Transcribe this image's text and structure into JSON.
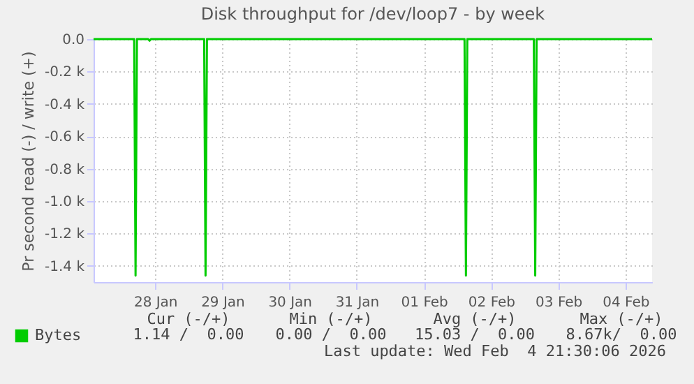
{
  "chart_data": {
    "type": "line",
    "title": "Disk throughput for /dev/loop7 - by week",
    "ylabel": "Pr second read (-) / write (+)",
    "x": [
      "2026-01-27T14:00",
      "2026-01-28T04:30",
      "2026-01-28T05:00",
      "2026-01-28T05:30",
      "2026-01-28T09:30",
      "2026-01-28T10:00",
      "2026-01-28T10:30",
      "2026-01-29T05:30",
      "2026-01-29T06:00",
      "2026-01-29T06:30",
      "2026-02-02T02:30",
      "2026-02-02T03:00",
      "2026-02-02T03:30",
      "2026-02-03T03:15",
      "2026-02-03T03:45",
      "2026-02-03T04:15",
      "2026-02-04T21:30"
    ],
    "series": [
      {
        "name": "Bytes",
        "color": "#00cc00",
        "values": [
          0,
          0,
          -1460,
          0,
          0,
          -10,
          0,
          0,
          -1460,
          0,
          0,
          -1460,
          0,
          0,
          -1460,
          0,
          0
        ]
      }
    ],
    "xlim": [
      "2026-01-27T14:00",
      "2026-02-04T21:30"
    ],
    "xticks": [
      {
        "value": "2026-01-28T12:00",
        "label": "28 Jan"
      },
      {
        "value": "2026-01-29T12:00",
        "label": "29 Jan"
      },
      {
        "value": "2026-01-30T12:00",
        "label": "30 Jan"
      },
      {
        "value": "2026-01-31T12:00",
        "label": "31 Jan"
      },
      {
        "value": "2026-02-01T12:00",
        "label": "01 Feb"
      },
      {
        "value": "2026-02-02T12:00",
        "label": "02 Feb"
      },
      {
        "value": "2026-02-03T12:00",
        "label": "03 Feb"
      },
      {
        "value": "2026-02-04T12:00",
        "label": "04 Feb"
      }
    ],
    "ylim": [
      -1500,
      0
    ],
    "yticks": [
      {
        "value": 0,
        "label": "0.0"
      },
      {
        "value": -200,
        "label": "-0.2 k"
      },
      {
        "value": -400,
        "label": "-0.4 k"
      },
      {
        "value": -600,
        "label": "-0.6 k"
      },
      {
        "value": -800,
        "label": "-0.8 k"
      },
      {
        "value": -1000,
        "label": "-1.0 k"
      },
      {
        "value": -1200,
        "label": "-1.2 k"
      },
      {
        "value": -1400,
        "label": "-1.4 k"
      }
    ],
    "grid": true,
    "legend": "bottom left",
    "marker": "none",
    "line_style": "solid",
    "annotations": [
      "Cur (-/+)",
      "Min (-/+)",
      "Avg (-/+)",
      "Max (-/+)",
      "1.14 /  0.00",
      "0.00 /  0.00",
      "15.03 /  0.00",
      "8.67k/  0.00",
      "Last update: Wed Feb  4 21:30:06 2026"
    ]
  }
}
